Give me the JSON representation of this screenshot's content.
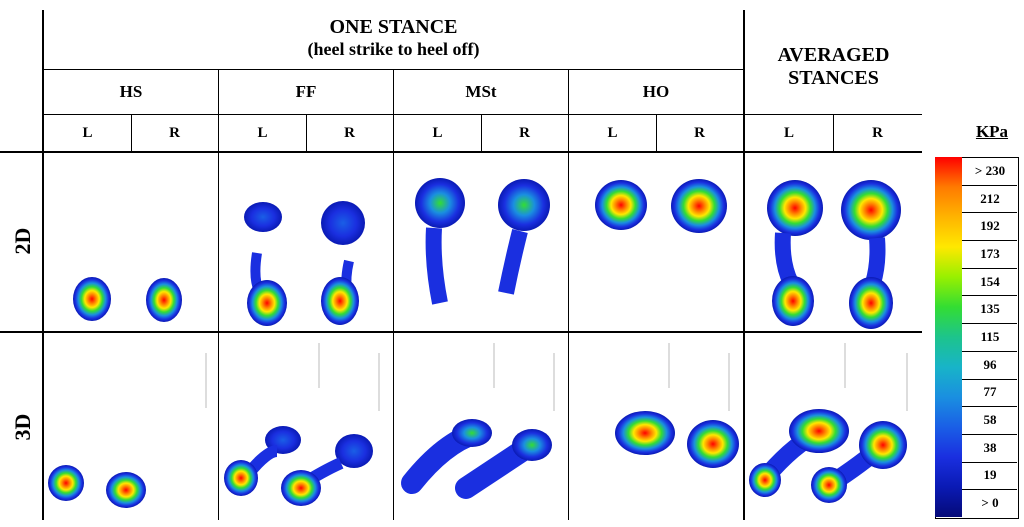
{
  "header": {
    "one_stance_title": "ONE STANCE",
    "one_stance_subtitle": "(heel strike to heel off)",
    "averaged_title": "AVERAGED",
    "averaged_subtitle": "STANCES"
  },
  "phases": [
    "HS",
    "FF",
    "MSt",
    "HO"
  ],
  "sides": [
    "L",
    "R"
  ],
  "rows": [
    "2D",
    "3D"
  ],
  "legend": {
    "unit": "KPa",
    "labels": [
      "> 230",
      "212",
      "192",
      "173",
      "154",
      "135",
      "115",
      "96",
      "77",
      "58",
      "38",
      "19",
      "> 0"
    ],
    "colors": [
      "#ff0000",
      "#ff7a00",
      "#ffb400",
      "#ffe800",
      "#98f000",
      "#33dd33",
      "#1dc48c",
      "#18b4c8",
      "#1a8fe0",
      "#1a5fe6",
      "#1a2fe0",
      "#0a1ab4",
      "#050a78"
    ]
  }
}
